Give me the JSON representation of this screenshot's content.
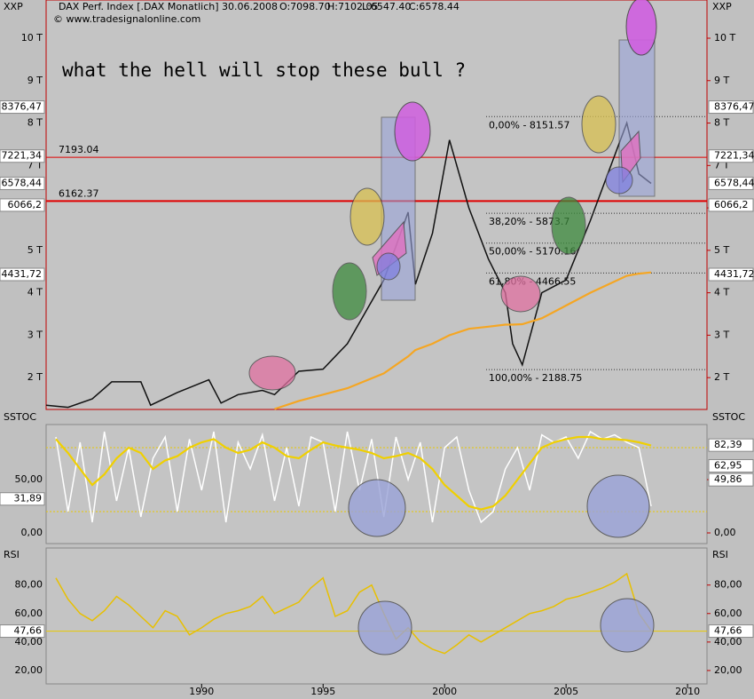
{
  "header": {
    "symbol_label": "XXP",
    "title": "DAX Perf. Index [.DAX  Monatlich] 30.06.2008",
    "open": "O:7098.70",
    "high": "H:7102.05",
    "low": "L:6547.40",
    "close": "C:6578.44",
    "copyright": "© www.tradesignalonline.com"
  },
  "chart_data": [
    {
      "type": "line",
      "annotation": "what the hell will stop these bull ?",
      "x": [
        1983.6,
        1984.5,
        1985.5,
        1986.3,
        1987.5,
        1987.9,
        1989,
        1990.3,
        1990.8,
        1991.5,
        1992.5,
        1993,
        1994,
        1995,
        1996,
        1997.5,
        1998.5,
        1998.8,
        1999.5,
        2000.2,
        2001,
        2001.8,
        2002.5,
        2002.8,
        2003.2,
        2004,
        2005,
        2006,
        2007.5,
        2008,
        2008.5
      ],
      "series": [
        {
          "color": "#111111",
          "values": [
            1350,
            1300,
            1500,
            1900,
            1900,
            1350,
            1650,
            1950,
            1400,
            1600,
            1700,
            1600,
            2150,
            2200,
            2800,
            4300,
            5900,
            4200,
            5400,
            7600,
            6000,
            4800,
            4000,
            2800,
            2300,
            4000,
            4300,
            5700,
            8000,
            6800,
            6578
          ]
        },
        {
          "color": "#f5a623",
          "values": [
            null,
            null,
            null,
            null,
            null,
            null,
            null,
            null,
            null,
            null,
            null,
            1260,
            1450,
            1600,
            1750,
            2100,
            2500,
            2650,
            2800,
            3000,
            3150,
            3200,
            3250,
            3250,
            3260,
            3400,
            3700,
            4000,
            4400,
            4450,
            4480
          ]
        }
      ],
      "xlim": [
        1983.6,
        2010.8
      ],
      "xticks": [
        1990,
        1995,
        2000,
        2005,
        2010
      ],
      "ylim": [
        1250,
        10900
      ],
      "yticks": [
        {
          "value": 2000,
          "label": "2 T"
        },
        {
          "value": 3000,
          "label": "3 T"
        },
        {
          "value": 4000,
          "label": "4 T"
        },
        {
          "value": 5000,
          "label": "5 T"
        },
        {
          "value": 6000,
          "label": "6 T"
        },
        {
          "value": 7000,
          "label": "7 T"
        },
        {
          "value": 8000,
          "label": "8 T"
        },
        {
          "value": 9000,
          "label": "9 T"
        },
        {
          "value": 10000,
          "label": "10 T"
        }
      ],
      "hlines": [
        {
          "value": 7193.04,
          "label": "7193.04",
          "color": "#e00000"
        },
        {
          "value": 6162.37,
          "label": "6162.37",
          "color": "#e00000"
        }
      ],
      "fib_levels": [
        {
          "value": 8151.57,
          "label": "0,00% - 8151.57"
        },
        {
          "value": 5873.7,
          "label": "38,20% - 5873.7"
        },
        {
          "value": 5170.16,
          "label": "50,00% - 5170.16"
        },
        {
          "value": 4466.55,
          "label": "61,80% - 4466.55"
        },
        {
          "value": 2188.75,
          "label": "100,00% - 2188.75"
        }
      ],
      "price_labels": [
        {
          "value": 8376.47,
          "label": "8376,47"
        },
        {
          "value": 7221.34,
          "label": "7221,34"
        },
        {
          "value": 6578.44,
          "label": "6578,44"
        },
        {
          "value": 6066.2,
          "label": "6066,2"
        },
        {
          "value": 4431.72,
          "label": "4431,72"
        }
      ]
    },
    {
      "type": "line",
      "title": "SSTOC",
      "x": [
        1984,
        1984.5,
        1985,
        1985.5,
        1986,
        1986.5,
        1987,
        1987.5,
        1988,
        1988.5,
        1989,
        1989.5,
        1990,
        1990.5,
        1991,
        1991.5,
        1992,
        1992.5,
        1993,
        1993.5,
        1994,
        1994.5,
        1995,
        1995.5,
        1996,
        1996.5,
        1997,
        1997.5,
        1998,
        1998.5,
        1999,
        1999.5,
        2000,
        2000.5,
        2001,
        2001.5,
        2002,
        2002.5,
        2003,
        2003.5,
        2004,
        2004.5,
        2005,
        2005.5,
        2006,
        2006.5,
        2007,
        2007.5,
        2008,
        2008.5
      ],
      "series": [
        {
          "color": "#ffffff",
          "values": [
            90,
            20,
            85,
            10,
            95,
            30,
            80,
            15,
            70,
            90,
            20,
            88,
            40,
            95,
            10,
            85,
            60,
            92,
            30,
            80,
            25,
            90,
            85,
            20,
            95,
            40,
            88,
            15,
            90,
            50,
            85,
            10,
            80,
            90,
            40,
            10,
            20,
            60,
            80,
            40,
            92,
            85,
            90,
            70,
            95,
            88,
            92,
            85,
            80,
            25
          ]
        },
        {
          "color": "#f0d000",
          "values": [
            88,
            75,
            60,
            45,
            55,
            70,
            80,
            75,
            60,
            68,
            72,
            80,
            85,
            88,
            80,
            75,
            78,
            85,
            80,
            72,
            70,
            78,
            85,
            82,
            80,
            78,
            75,
            70,
            72,
            75,
            70,
            60,
            45,
            35,
            25,
            22,
            25,
            35,
            50,
            65,
            80,
            85,
            88,
            90,
            90,
            88,
            88,
            87,
            85,
            82
          ]
        }
      ],
      "xlim": [
        1983.6,
        2010.8
      ],
      "ylim": [
        -10,
        101.7
      ],
      "yticks": [
        {
          "value": 0,
          "label": "0,00"
        },
        {
          "value": 50,
          "label": "50,00"
        }
      ],
      "levels": [
        80,
        20
      ],
      "price_labels": [
        {
          "value": 82.39,
          "label": "82,39"
        },
        {
          "value": 62.95,
          "label": "62,95"
        },
        {
          "value": 49.86,
          "label": "49,86"
        },
        {
          "value": 31.89,
          "label": "31,89"
        }
      ]
    },
    {
      "type": "line",
      "title": "RSI",
      "x": [
        1984,
        1984.5,
        1985,
        1985.5,
        1986,
        1986.5,
        1987,
        1987.5,
        1988,
        1988.5,
        1989,
        1989.5,
        1990,
        1990.5,
        1991,
        1991.5,
        1992,
        1992.5,
        1993,
        1993.5,
        1994,
        1994.5,
        1995,
        1995.5,
        1996,
        1996.5,
        1997,
        1997.5,
        1998,
        1998.5,
        1999,
        1999.5,
        2000,
        2000.5,
        2001,
        2001.5,
        2002,
        2002.5,
        2003,
        2003.5,
        2004,
        2004.5,
        2005,
        2005.5,
        2006,
        2006.5,
        2007,
        2007.5,
        2008,
        2008.5
      ],
      "series": [
        {
          "color": "#e8c000",
          "values": [
            85,
            70,
            60,
            55,
            62,
            72,
            66,
            58,
            50,
            62,
            58,
            45,
            50,
            56,
            60,
            62,
            65,
            72,
            60,
            64,
            68,
            78,
            85,
            58,
            62,
            75,
            80,
            60,
            42,
            50,
            40,
            35,
            32,
            38,
            45,
            40,
            45,
            50,
            55,
            60,
            62,
            65,
            70,
            72,
            75,
            78,
            82,
            88,
            60,
            48
          ]
        }
      ],
      "xlim": [
        1983.6,
        2010.8
      ],
      "ylim": [
        10.6,
        106
      ],
      "yticks": [
        {
          "value": 20,
          "label": "20,00"
        },
        {
          "value": 40,
          "label": "40,00"
        },
        {
          "value": 60,
          "label": "60,00"
        },
        {
          "value": 80,
          "label": "80,00"
        }
      ],
      "levels": [
        47.66
      ],
      "price_labels": [
        {
          "value": 47.66,
          "label": "47,66"
        }
      ]
    }
  ]
}
